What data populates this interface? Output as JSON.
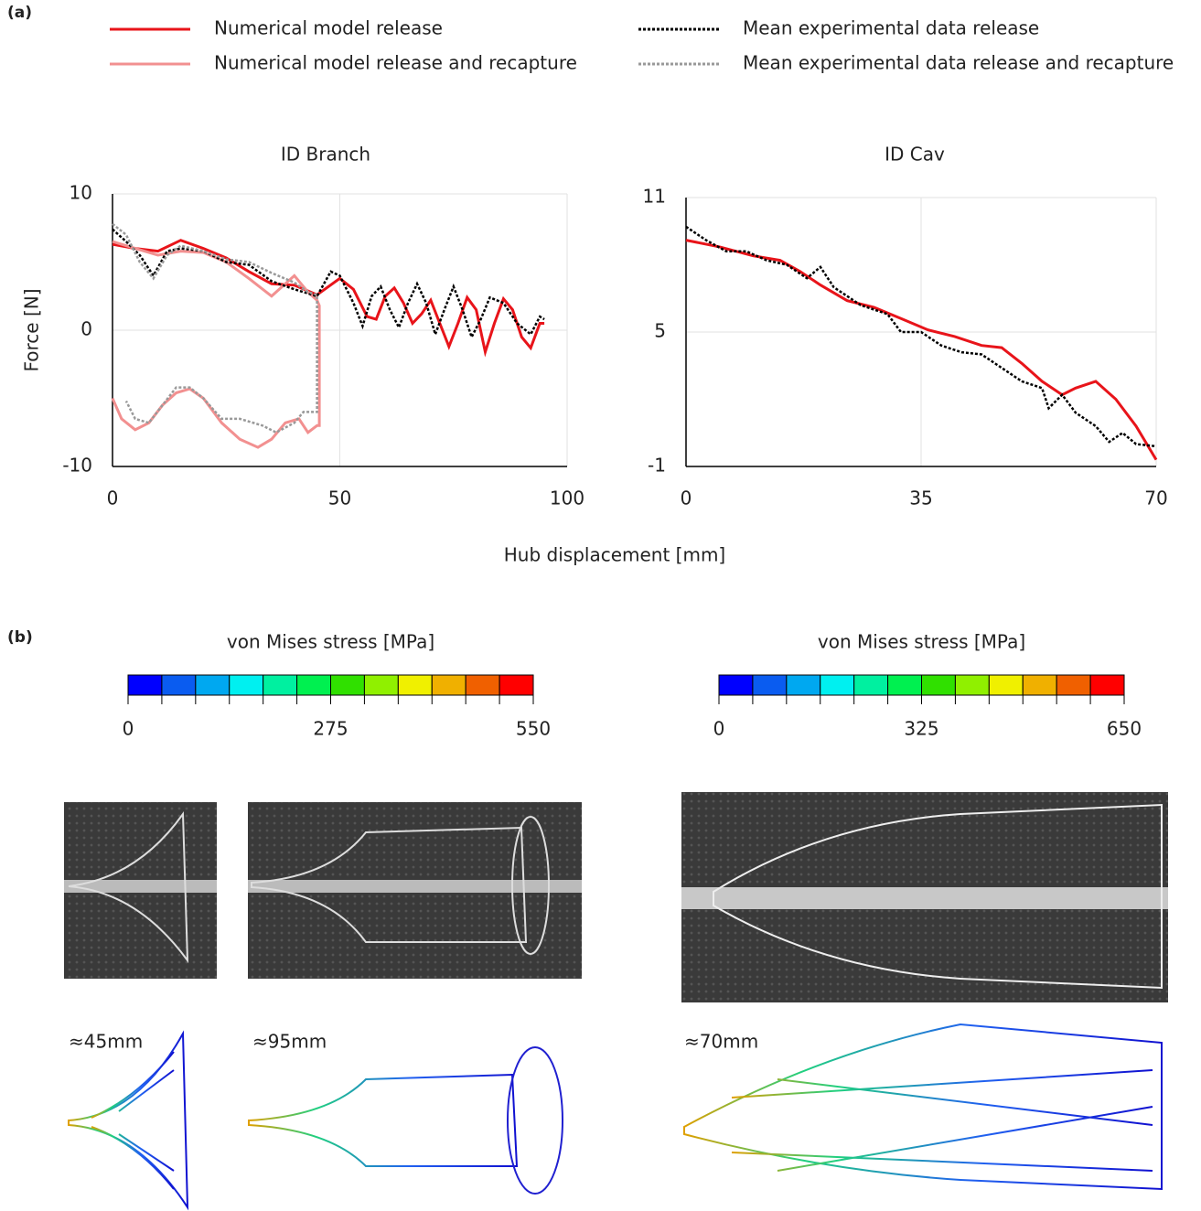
{
  "panel_labels": [
    "(a)",
    "(b)"
  ],
  "shared_axes": {
    "ylabel": "Force [N]",
    "xlabel": "Hub displacement  [mm]"
  },
  "chart_data": [
    {
      "type": "line",
      "title": "ID Branch",
      "xlim": [
        0,
        100
      ],
      "ylim": [
        -10,
        10
      ],
      "xticks": [
        0,
        50,
        100
      ],
      "yticks": [
        -10,
        0,
        10
      ],
      "grid": true,
      "series": [
        {
          "name": "Numerical model release",
          "color": "#e8141a",
          "style": "solid",
          "x": [
            0,
            5,
            10,
            15,
            20,
            25,
            30,
            35,
            40,
            45,
            50,
            53,
            56,
            58,
            60,
            62,
            64,
            66,
            68,
            70,
            72,
            74,
            76,
            78,
            80,
            82,
            84,
            86,
            88,
            90,
            92,
            94,
            95
          ],
          "values": [
            6.3,
            6.0,
            5.8,
            6.6,
            6.0,
            5.3,
            4.3,
            3.4,
            3.3,
            2.6,
            3.8,
            3.0,
            1.0,
            0.8,
            2.5,
            3.1,
            2.0,
            0.5,
            1.2,
            2.2,
            0.5,
            -1.2,
            0.5,
            2.4,
            1.5,
            -1.6,
            0.5,
            2.3,
            1.5,
            -0.5,
            -1.3,
            0.5,
            0.5
          ]
        },
        {
          "name": "Numerical model release and recapture",
          "color": "#f29090",
          "style": "solid",
          "x": [
            0,
            5,
            10,
            15,
            20,
            25,
            30,
            35,
            40,
            43,
            45,
            45.5,
            45.5,
            45,
            43,
            41,
            38,
            35,
            32,
            28,
            24,
            20,
            17,
            14,
            11,
            8,
            5,
            2,
            0
          ],
          "values": [
            6.5,
            6.0,
            5.5,
            5.8,
            5.7,
            5.0,
            3.8,
            2.5,
            4.0,
            2.8,
            2.2,
            1.8,
            -7.0,
            -7.0,
            -7.5,
            -6.5,
            -6.8,
            -8.0,
            -8.6,
            -8.0,
            -6.8,
            -5.0,
            -4.3,
            -4.6,
            -5.5,
            -6.8,
            -7.3,
            -6.5,
            -5.0
          ]
        },
        {
          "name": "Mean experimental data release",
          "color": "#000000",
          "style": "dotted",
          "x": [
            0,
            3,
            6,
            9,
            12,
            15,
            20,
            25,
            30,
            35,
            40,
            45,
            48,
            50,
            53,
            55,
            57,
            59,
            61,
            63,
            65,
            67,
            69,
            71,
            73,
            75,
            77,
            79,
            81,
            83,
            86,
            89,
            92,
            94,
            95
          ],
          "values": [
            7.4,
            6.5,
            5.5,
            4.0,
            5.8,
            6.0,
            5.8,
            5.0,
            4.8,
            3.6,
            3.0,
            2.5,
            4.3,
            4.0,
            2.0,
            0.3,
            2.5,
            3.2,
            1.5,
            0.2,
            2.0,
            3.4,
            2.0,
            -0.3,
            1.5,
            3.2,
            1.5,
            -0.5,
            0.8,
            2.4,
            2.0,
            0.5,
            -0.3,
            1.0,
            0.8
          ]
        },
        {
          "name": "Mean experimental data release and recapture",
          "color": "#999999",
          "style": "dotted",
          "x": [
            0,
            3,
            6,
            9,
            12,
            15,
            20,
            25,
            30,
            35,
            40,
            43,
            45,
            45,
            42,
            40,
            36,
            33,
            28,
            24,
            20,
            17,
            14,
            11,
            8,
            5,
            3
          ],
          "values": [
            7.8,
            7.0,
            5.0,
            3.8,
            5.5,
            6.2,
            5.8,
            5.2,
            5.0,
            4.2,
            3.5,
            2.8,
            2.6,
            -6.0,
            -6.0,
            -6.8,
            -7.5,
            -7.0,
            -6.5,
            -6.5,
            -5.0,
            -4.2,
            -4.2,
            -5.5,
            -6.8,
            -6.5,
            -5.2
          ]
        }
      ]
    },
    {
      "type": "line",
      "title": "ID Cav",
      "xlim": [
        0,
        70
      ],
      "ylim": [
        -1,
        11
      ],
      "xticks": [
        0,
        35,
        70
      ],
      "yticks": [
        -1,
        5,
        11
      ],
      "grid": true,
      "series": [
        {
          "name": "Numerical model release",
          "color": "#e8141a",
          "style": "solid",
          "x": [
            0,
            5,
            10,
            14,
            17,
            20,
            24,
            28,
            32,
            36,
            40,
            44,
            47,
            50,
            53,
            56,
            58,
            61,
            64,
            67,
            70
          ],
          "values": [
            9.1,
            8.8,
            8.4,
            8.2,
            7.7,
            7.1,
            6.4,
            6.1,
            5.6,
            5.1,
            4.8,
            4.4,
            4.3,
            3.6,
            2.8,
            2.2,
            2.5,
            2.8,
            2.0,
            0.8,
            -0.7
          ]
        },
        {
          "name": "Mean experimental data release",
          "color": "#000000",
          "style": "dotted",
          "x": [
            0,
            3,
            6,
            9,
            12,
            15,
            18,
            20,
            22,
            26,
            30,
            32,
            35,
            38,
            41,
            44,
            47,
            50,
            53,
            54,
            56,
            58,
            61,
            63,
            65,
            67,
            70
          ],
          "values": [
            9.7,
            9.1,
            8.6,
            8.6,
            8.2,
            8.0,
            7.4,
            7.9,
            7.0,
            6.2,
            5.8,
            5.0,
            5.0,
            4.4,
            4.1,
            4.0,
            3.4,
            2.8,
            2.5,
            1.6,
            2.2,
            1.4,
            0.8,
            0.1,
            0.5,
            0.0,
            -0.1
          ]
        }
      ]
    }
  ],
  "colorbars": [
    {
      "title": "von Mises stress [MPa]",
      "lim": [
        0,
        550
      ],
      "ticks": [
        0,
        275,
        550
      ]
    },
    {
      "title": "von Mises stress [MPa]",
      "lim": [
        0,
        650
      ],
      "ticks": [
        0,
        325,
        650
      ]
    }
  ],
  "colorbar_colors": [
    "#0000ff",
    "#0a5cf0",
    "#00a8f0",
    "#00f0f0",
    "#00f0a0",
    "#00f050",
    "#30e000",
    "#90f000",
    "#f0f000",
    "#f0b000",
    "#f06000",
    "#ff0000"
  ],
  "image_labels": [
    "≈45mm",
    "≈95mm",
    "≈70mm"
  ]
}
